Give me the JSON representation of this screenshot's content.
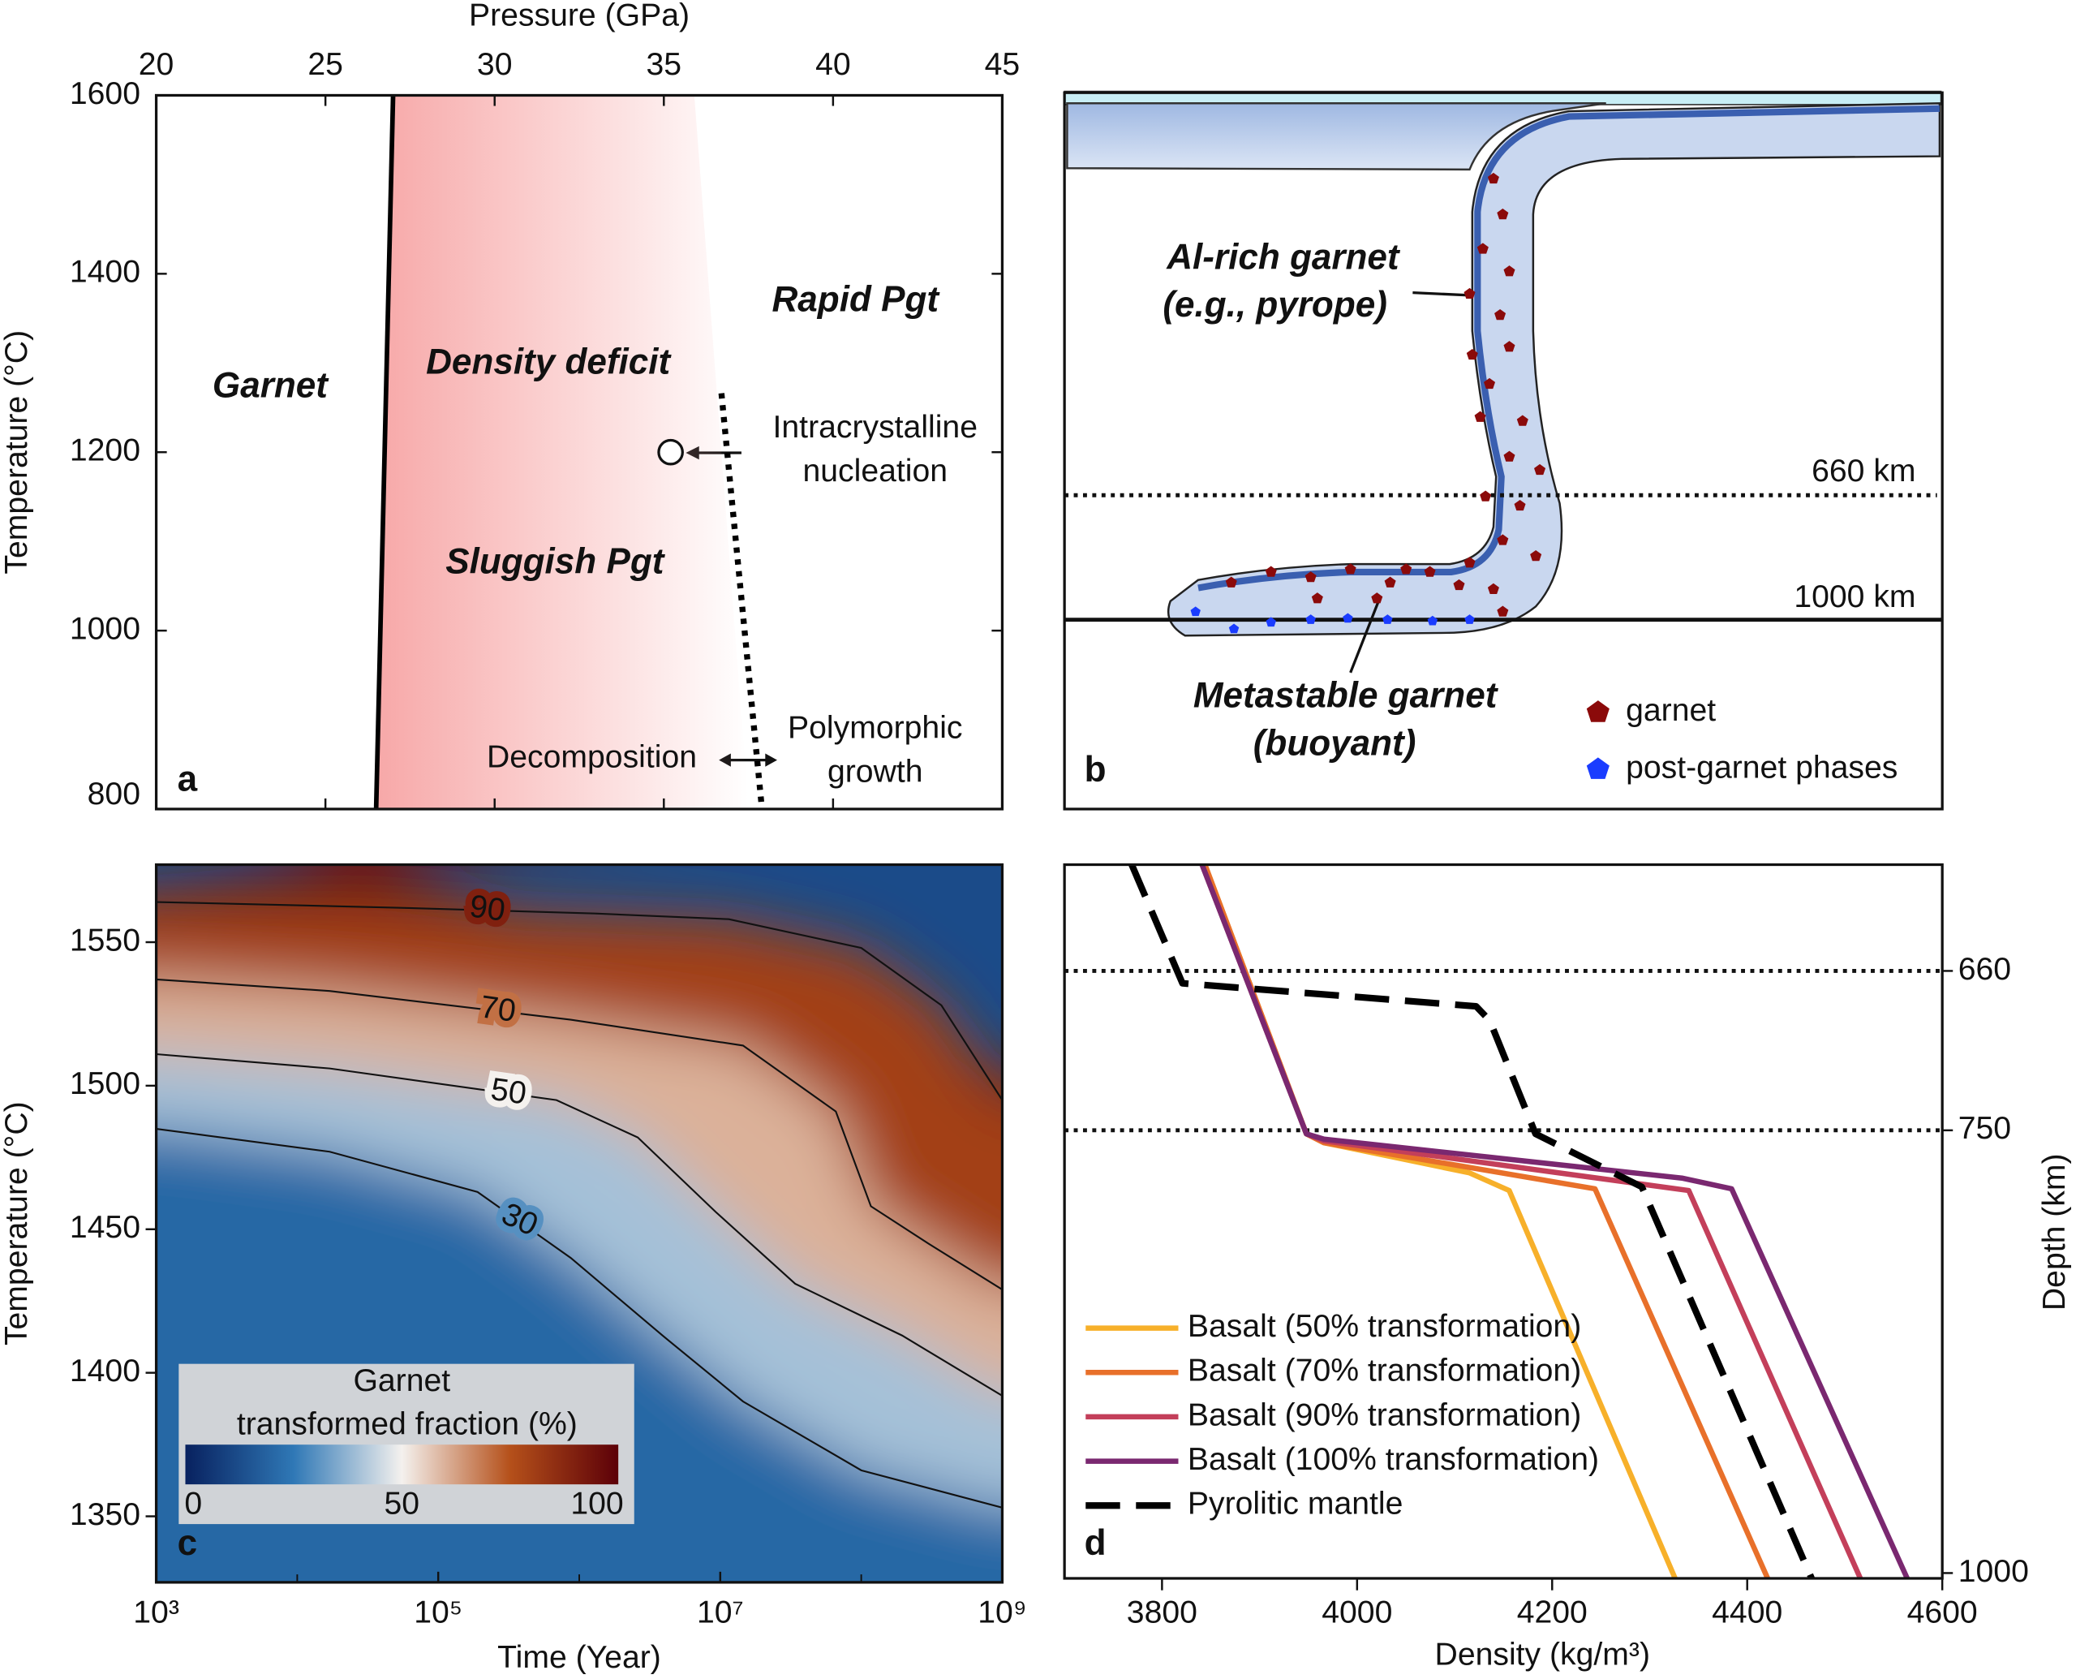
{
  "chart_data": [
    {
      "type": "phase",
      "panel_label": "a",
      "xlabel": "Pressure (GPa)",
      "ylabel": "Temperature (°C)",
      "x_axis_side": "top",
      "xlim": [
        20,
        45
      ],
      "ylim": [
        800,
        1600
      ],
      "xticks": [
        20,
        25,
        30,
        35,
        40,
        45
      ],
      "yticks": [
        800,
        1000,
        1200,
        1400,
        1600
      ],
      "shade": {
        "x": [
          26.5,
          27.0,
          35.9,
          37.5
        ],
        "y": [
          800,
          1600,
          1600,
          800
        ],
        "color": "#f7a8a8"
      },
      "boundary": {
        "x": [
          26.5,
          27.0
        ],
        "y": [
          800,
          1600
        ],
        "color": "#000000"
      },
      "kinetic_boundary": {
        "x": [
          36.7,
          37.9
        ],
        "y": [
          1266,
          800
        ],
        "color": "#000000"
      },
      "nucleation_point": {
        "x": 35.2,
        "y": 1200
      },
      "annotations": [
        {
          "lines": [
            "Garnet"
          ]
        },
        {
          "lines": [
            "Density deficit"
          ],
          "color": "#e8141c"
        },
        {
          "lines": [
            "Rapid Pgt"
          ]
        },
        {
          "lines": [
            "Sluggish Pgt"
          ]
        },
        {
          "lines": [
            "Intracrystalline",
            "nucleation"
          ]
        },
        {
          "lines": [
            "Decomposition"
          ]
        },
        {
          "lines": [
            "Polymorphic",
            "growth"
          ]
        }
      ]
    },
    {
      "type": "diagram",
      "panel_label": "b",
      "annotations": [
        {
          "lines": [
            "Al-rich garnet",
            "(e.g., pyrope)"
          ]
        },
        {
          "lines": [
            "Metastable garnet",
            "(buoyant)"
          ]
        }
      ],
      "depth_lines": [
        {
          "label": "660 km",
          "style": "dotted"
        },
        {
          "label": "1000 km",
          "style": "solid"
        }
      ],
      "legend": [
        {
          "name": "garnet",
          "color": "#8b0a0a"
        },
        {
          "name": "post-garnet phases",
          "color": "#1a3cff"
        }
      ]
    },
    {
      "type": "contour",
      "panel_label": "c",
      "xlabel": "Time (Year)",
      "ylabel": "Temperature (°C)",
      "xscale": "log",
      "xlim": [
        1000,
        1000000000
      ],
      "ylim": [
        1327,
        1577
      ],
      "xticks": [
        {
          "value": 1000,
          "label": "10³"
        },
        {
          "value": 100000,
          "label": "10⁵"
        },
        {
          "value": 10000000,
          "label": "10⁷"
        },
        {
          "value": 1000000000,
          "label": "10⁹"
        }
      ],
      "yticks": [
        1350,
        1400,
        1450,
        1500,
        1550
      ],
      "colormap": [
        "#08215f",
        "#2f78b6",
        "#f4f1ee",
        "#b5501a",
        "#5c0008"
      ],
      "colorbar": {
        "label": [
          "Garnet",
          "transformed fraction (%)"
        ],
        "lim": [
          0,
          100
        ],
        "ticks": [
          0,
          50,
          100
        ]
      },
      "contours": [
        {
          "level": 90,
          "x": [
            1000,
            51000,
            1300000,
            11500000,
            100000000,
            370000000,
            1000000000
          ],
          "y": [
            1564,
            1562,
            1560,
            1558,
            1548,
            1528,
            1495
          ]
        },
        {
          "level": 70,
          "x": [
            1000,
            17000,
            870000,
            14500000,
            66000000,
            117000000,
            300000000,
            1000000000
          ],
          "y": [
            1537,
            1533,
            1523,
            1514,
            1491,
            1458,
            1445,
            1429
          ]
        },
        {
          "level": 50,
          "x": [
            1000,
            17000,
            690000,
            2600000,
            9300000,
            34000000,
            195000000,
            1000000000
          ],
          "y": [
            1511,
            1506,
            1495,
            1482,
            1456,
            1431,
            1413,
            1392
          ]
        },
        {
          "level": 30,
          "x": [
            1000,
            17000,
            190000,
            870000,
            3900000,
            14500000,
            100000000,
            1000000000
          ],
          "y": [
            1485,
            1477,
            1463,
            1440,
            1413,
            1390,
            1366,
            1353
          ]
        }
      ]
    },
    {
      "type": "line",
      "panel_label": "d",
      "xlabel": "Density (kg/m³)",
      "ylabel": "Depth (km)",
      "y_axis_side": "right",
      "y_inverted": true,
      "xlim": [
        3700,
        4600
      ],
      "ylim": [
        600,
        1003
      ],
      "xticks": [
        3800,
        4000,
        4200,
        4400,
        4600
      ],
      "yticks": [
        660,
        750,
        1000
      ],
      "reference_lines": [
        660,
        750
      ],
      "series": [
        {
          "name": "Basalt (50% transformation)",
          "color": "#f7b02a",
          "x": [
            3844,
            3948,
            3966,
            4115,
            4156,
            4326
          ],
          "y": [
            600,
            752,
            757,
            774,
            784,
            1003
          ]
        },
        {
          "name": "Basalt (70% transformation)",
          "color": "#e8702a",
          "x": [
            3844,
            3948,
            3966,
            4244,
            4421
          ],
          "y": [
            600,
            752,
            757,
            783,
            1003
          ]
        },
        {
          "name": "Basalt (90% transformation)",
          "color": "#c33f5a",
          "x": [
            3841,
            3948,
            3966,
            4340,
            4516
          ],
          "y": [
            600,
            752,
            756,
            784,
            1003
          ]
        },
        {
          "name": "Basalt (100% transformation)",
          "color": "#7a2870",
          "x": [
            3841,
            3948,
            3966,
            4333,
            4384,
            4564
          ],
          "y": [
            600,
            752,
            755,
            777,
            783,
            1003
          ]
        },
        {
          "name": "Pyrolitic mantle",
          "color": "#000000",
          "dashed": true,
          "x": [
            3769,
            3821,
            4122,
            4136,
            4183,
            4292,
            4466
          ],
          "y": [
            600,
            667,
            680,
            688,
            752,
            782,
            1003
          ]
        }
      ]
    }
  ]
}
